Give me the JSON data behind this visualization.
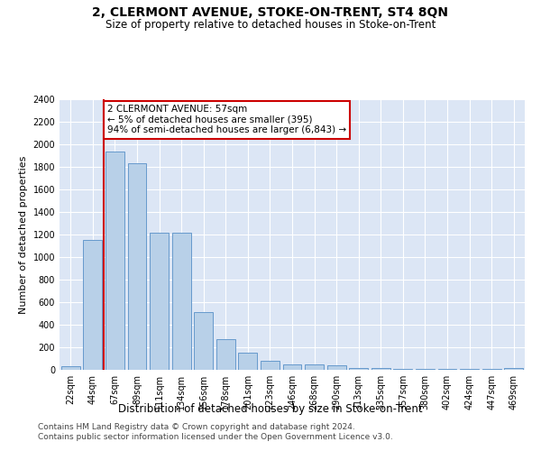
{
  "title": "2, CLERMONT AVENUE, STOKE-ON-TRENT, ST4 8QN",
  "subtitle": "Size of property relative to detached houses in Stoke-on-Trent",
  "xlabel": "Distribution of detached houses by size in Stoke-on-Trent",
  "ylabel": "Number of detached properties",
  "categories": [
    "22sqm",
    "44sqm",
    "67sqm",
    "89sqm",
    "111sqm",
    "134sqm",
    "156sqm",
    "178sqm",
    "201sqm",
    "223sqm",
    "246sqm",
    "268sqm",
    "290sqm",
    "313sqm",
    "335sqm",
    "357sqm",
    "380sqm",
    "402sqm",
    "424sqm",
    "447sqm",
    "469sqm"
  ],
  "values": [
    30,
    1150,
    1940,
    1830,
    1220,
    1220,
    510,
    270,
    150,
    80,
    50,
    45,
    40,
    20,
    15,
    10,
    5,
    5,
    5,
    5,
    20
  ],
  "bar_color": "#b8d0e8",
  "bar_edge_color": "#6699cc",
  "marker_bin_index": 2,
  "marker_color": "#cc0000",
  "annotation_text": "2 CLERMONT AVENUE: 57sqm\n← 5% of detached houses are smaller (395)\n94% of semi-detached houses are larger (6,843) →",
  "annotation_box_color": "#ffffff",
  "annotation_border_color": "#cc0000",
  "ylim": [
    0,
    2400
  ],
  "yticks": [
    0,
    200,
    400,
    600,
    800,
    1000,
    1200,
    1400,
    1600,
    1800,
    2000,
    2200,
    2400
  ],
  "footer1": "Contains HM Land Registry data © Crown copyright and database right 2024.",
  "footer2": "Contains public sector information licensed under the Open Government Licence v3.0.",
  "plot_bg_color": "#dce6f5",
  "title_fontsize": 10,
  "subtitle_fontsize": 8.5,
  "xlabel_fontsize": 8.5,
  "ylabel_fontsize": 8,
  "tick_fontsize": 7,
  "footer_fontsize": 6.5
}
